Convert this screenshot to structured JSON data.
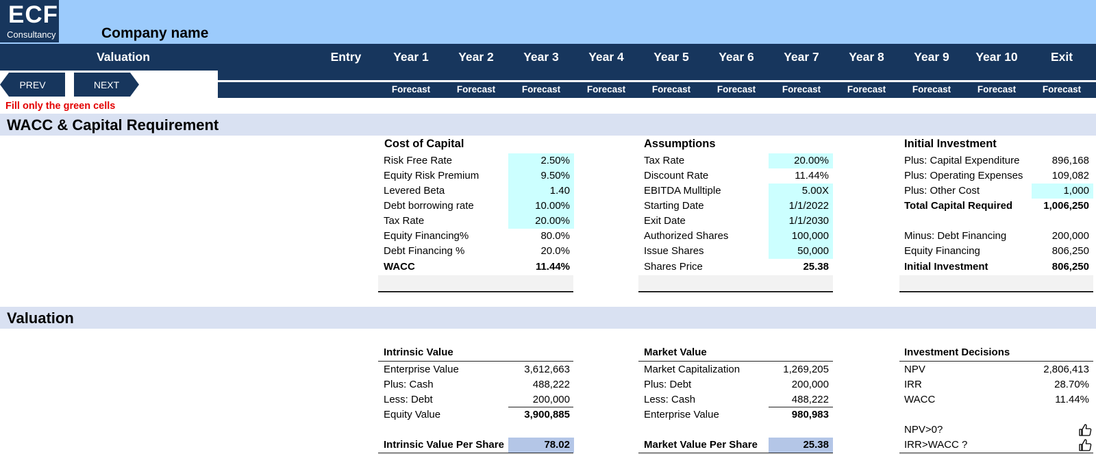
{
  "logo": {
    "big": "ECF",
    "small": "Consultancy"
  },
  "company_name": "Company name",
  "header": {
    "valuation": "Valuation",
    "columns": [
      "Entry",
      "Year 1",
      "Year 2",
      "Year 3",
      "Year 4",
      "Year 5",
      "Year 6",
      "Year 7",
      "Year 8",
      "Year 9",
      "Year 10",
      "Exit"
    ],
    "sub": [
      "Forecast",
      "Forecast",
      "Forecast",
      "Forecast",
      "Forecast",
      "Forecast",
      "Forecast",
      "Forecast",
      "Forecast",
      "Forecast",
      "Forecast"
    ]
  },
  "nav": {
    "prev": "PREV",
    "next": "NEXT"
  },
  "note": "Fill only the green cells",
  "section1": "WACC & Capital Requirement",
  "section2": "Valuation",
  "cost_of_capital": {
    "title": "Cost of Capital",
    "rows": [
      {
        "label": "Risk Free Rate",
        "value": "2.50%"
      },
      {
        "label": "Equity Risk Premium",
        "value": "9.50%"
      },
      {
        "label": "Levered Beta",
        "value": "1.40"
      },
      {
        "label": "Debt borrowing rate",
        "value": "10.00%"
      },
      {
        "label": "Tax Rate",
        "value": "20.00%"
      },
      {
        "label": "Equity Financing%",
        "value": "80.0%"
      },
      {
        "label": "Debt Financing %",
        "value": "20.0%"
      },
      {
        "label": "WACC",
        "value": "11.44%"
      }
    ]
  },
  "assumptions": {
    "title": "Assumptions",
    "rows": [
      {
        "label": "Tax Rate",
        "value": "20.00%"
      },
      {
        "label": "Discount Rate",
        "value": "11.44%"
      },
      {
        "label": "EBITDA Mulltiple",
        "value": "5.00X"
      },
      {
        "label": "Starting Date",
        "value": "1/1/2022"
      },
      {
        "label": "Exit Date",
        "value": "1/1/2030"
      },
      {
        "label": "Authorized Shares",
        "value": "100,000"
      },
      {
        "label": "Issue Shares",
        "value": "50,000"
      },
      {
        "label": "Shares Price",
        "value": "25.38"
      }
    ]
  },
  "initial_investment": {
    "title": "Initial Investment",
    "rows": [
      {
        "label": "Plus: Capital Expenditure",
        "value": "896,168"
      },
      {
        "label": "Plus: Operating Expenses",
        "value": "109,082"
      },
      {
        "label": "Plus: Other Cost",
        "value": "1,000"
      },
      {
        "label": "Total Capital Required",
        "value": "1,006,250"
      },
      {
        "label": "Minus: Debt Financing",
        "value": "200,000"
      },
      {
        "label": "Equity Financing",
        "value": "806,250"
      },
      {
        "label": "Initial Investment",
        "value": "806,250"
      }
    ]
  },
  "intrinsic_value": {
    "title": "Intrinsic Value",
    "rows": [
      {
        "label": "Enterprise Value",
        "value": "3,612,663"
      },
      {
        "label": "Plus: Cash",
        "value": "488,222"
      },
      {
        "label": "Less: Debt",
        "value": "200,000"
      },
      {
        "label": "Equity Value",
        "value": "3,900,885"
      }
    ],
    "per_share_label": "Intrinsic Value Per Share",
    "per_share_value": "78.02"
  },
  "market_value": {
    "title": "Market Value",
    "rows": [
      {
        "label": "Market Capitalization",
        "value": "1,269,205"
      },
      {
        "label": "Plus: Debt",
        "value": "200,000"
      },
      {
        "label": "Less: Cash",
        "value": "488,222"
      },
      {
        "label": "Enterprise Value",
        "value": "980,983"
      }
    ],
    "per_share_label": "Market Value Per Share",
    "per_share_value": "25.38"
  },
  "investment_decisions": {
    "title": "Investment Decisions",
    "rows": [
      {
        "label": "NPV",
        "value": "2,806,413"
      },
      {
        "label": "IRR",
        "value": "28.70%"
      },
      {
        "label": "WACC",
        "value": "11.44%"
      }
    ],
    "checks": [
      {
        "label": "NPV>0?",
        "icon": "thumbs-up-icon"
      },
      {
        "label": "IRR>WACC ?",
        "icon": "thumbs-up-icon"
      }
    ]
  }
}
